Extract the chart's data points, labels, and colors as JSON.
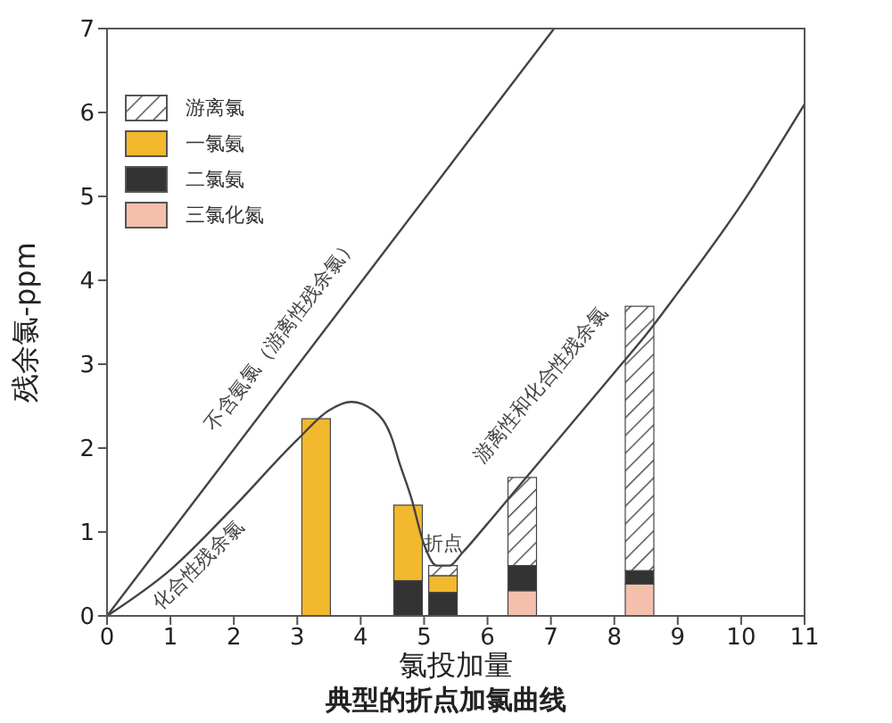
{
  "chart_data": {
    "type": "bar",
    "title": "典型的折点加氯曲线",
    "xlabel": "氯投加量",
    "ylabel": "残余氯-ppm",
    "stacked": true,
    "x": [
      3.3,
      4.75,
      5.3,
      6.55,
      8.4
    ],
    "xlim": [
      0,
      11
    ],
    "xticks": [
      0,
      1,
      2,
      3,
      4,
      5,
      6,
      7,
      8,
      9,
      10,
      11
    ],
    "ylim": [
      0,
      7
    ],
    "yticks": [
      0,
      1,
      2,
      3,
      4,
      5,
      6,
      7
    ],
    "grid": false,
    "legend": "top left",
    "series": [
      {
        "name": "三氯化氮",
        "color": "#f4c0ad",
        "values": [
          null,
          null,
          null,
          0.3,
          0.38
        ]
      },
      {
        "name": "二氯氨",
        "color": "#333333",
        "values": [
          null,
          0.42,
          0.28,
          0.3,
          0.16
        ]
      },
      {
        "name": "一氯氨",
        "color": "#f2b82e",
        "values": [
          2.35,
          0.9,
          0.2,
          null,
          null
        ]
      },
      {
        "name": "游离氯",
        "color": "#444444",
        "values": [
          null,
          null,
          0.12,
          1.05,
          3.15
        ]
      },
      {
        "type": "line",
        "color": "#444444",
        "x": [
          0,
          7.05
        ],
        "values": [
          0,
          7
        ]
      },
      {
        "type": "line",
        "color": "#444444",
        "x": [
          0,
          1,
          2,
          3,
          3.5,
          3.85,
          4.2,
          4.5,
          4.6,
          4.8,
          5,
          5.2,
          5.4,
          5.6,
          6,
          6.5,
          7,
          8,
          8.5,
          9,
          10,
          11
        ],
        "values": [
          0,
          0.55,
          1.3,
          2.1,
          2.45,
          2.55,
          2.45,
          2.1,
          1.85,
          1.4,
          0.85,
          0.6,
          0.6,
          0.75,
          1.1,
          1.55,
          2,
          2.9,
          3.35,
          3.85,
          4.9,
          6.1
        ]
      }
    ],
    "annotations": [
      "不含氨氯（游离性残余氯）",
      "化合性残余氯",
      "游离性和化合性残余氯",
      "折点"
    ]
  }
}
